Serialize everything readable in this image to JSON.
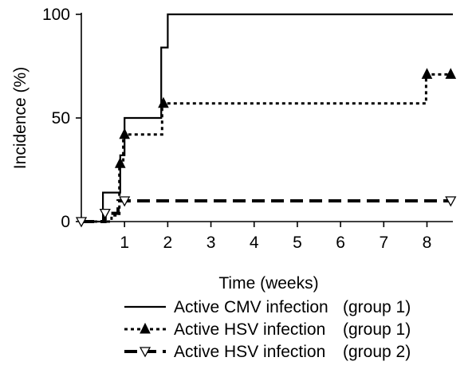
{
  "chart_data": {
    "type": "line",
    "step": true,
    "title": "",
    "xlabel": "Time (weeks)",
    "ylabel": "Incidence (%)",
    "xlim": [
      0,
      8.6
    ],
    "ylim": [
      0,
      100
    ],
    "x_ticks": [
      1,
      2,
      3,
      4,
      5,
      6,
      7,
      8
    ],
    "x_tick_labels": [
      "1",
      "2",
      "3",
      "4",
      "5",
      "6",
      "7",
      "8"
    ],
    "y_ticks": [
      0,
      50,
      100
    ],
    "y_tick_labels": [
      "0",
      "50",
      "100"
    ],
    "grid": false,
    "legend_position": "bottom",
    "series": [
      {
        "name": "Active CMV infection",
        "group": "(group 1)",
        "line_style": "solid",
        "marker": "none",
        "color": "#000000",
        "steps": [
          [
            0,
            0
          ],
          [
            0.5,
            0
          ],
          [
            0.5,
            14
          ],
          [
            0.9,
            14
          ],
          [
            0.9,
            32
          ],
          [
            1.0,
            32
          ],
          [
            1.0,
            50
          ],
          [
            1.85,
            50
          ],
          [
            1.85,
            84
          ],
          [
            2.0,
            84
          ],
          [
            2.0,
            100
          ],
          [
            8.6,
            100
          ]
        ],
        "markers": []
      },
      {
        "name": "Active HSV infection",
        "group": "(group 1)",
        "line_style": "dotted",
        "marker": "filled-triangle",
        "color": "#000000",
        "steps": [
          [
            0,
            0
          ],
          [
            0.7,
            0
          ],
          [
            0.7,
            3
          ],
          [
            0.88,
            3
          ],
          [
            0.88,
            28
          ],
          [
            0.97,
            28
          ],
          [
            0.97,
            42
          ],
          [
            1.87,
            42
          ],
          [
            1.87,
            57
          ],
          [
            7.98,
            57
          ],
          [
            7.98,
            71
          ],
          [
            8.6,
            71
          ]
        ],
        "markers": [
          [
            0.9,
            28
          ],
          [
            1.0,
            42
          ],
          [
            1.9,
            57
          ],
          [
            8.0,
            71
          ],
          [
            8.55,
            71
          ]
        ]
      },
      {
        "name": "Active HSV infection",
        "group": "(group 2)",
        "line_style": "dashed",
        "marker": "open-triangle-down",
        "color": "#000000",
        "steps": [
          [
            0,
            0
          ],
          [
            0.55,
            0
          ],
          [
            0.55,
            4
          ],
          [
            0.85,
            4
          ],
          [
            0.85,
            10
          ],
          [
            8.6,
            10
          ]
        ],
        "markers": [
          [
            0,
            0
          ],
          [
            0.55,
            4
          ],
          [
            1.0,
            10
          ],
          [
            8.55,
            10
          ]
        ]
      }
    ]
  }
}
